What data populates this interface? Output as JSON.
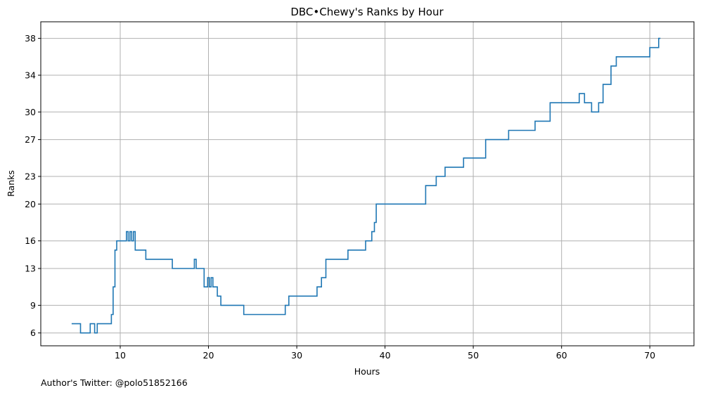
{
  "chart_data": {
    "type": "line",
    "step": "post",
    "title": "DBC•Chewy's Ranks by Hour",
    "xlabel": "Hours",
    "ylabel": "Ranks",
    "xlim": [
      1,
      75
    ],
    "ylim": [
      39.8,
      4.6
    ],
    "y_inverted": true,
    "x_ticks": [
      10,
      20,
      30,
      40,
      50,
      60,
      70
    ],
    "y_ticks": [
      6,
      9,
      13,
      16,
      20,
      23,
      27,
      30,
      34,
      38
    ],
    "grid": true,
    "line_color": "#1f77b4",
    "series": [
      {
        "x": [
          4.5,
          5.5,
          6.6,
          7.1,
          7.4,
          9.0,
          9.2,
          9.4,
          9.6,
          10.7,
          10.9,
          11.1,
          11.3,
          11.5,
          11.7,
          12.9,
          15.9,
          18.4,
          18.6,
          19.5,
          19.9,
          20.1,
          20.3,
          20.5,
          21.0,
          21.4,
          21.6,
          24.0,
          28.7,
          29.1,
          32.3,
          32.8,
          33.3,
          35.8,
          37.8,
          38.5,
          38.8,
          39.0,
          39.8,
          44.6,
          45.8,
          46.8,
          48.9,
          51.4,
          54.0,
          57.0,
          58.7,
          62.0,
          62.6,
          63.4,
          64.2,
          64.7,
          65.6,
          65.9,
          66.2,
          70.0,
          71.0,
          71.2
        ],
        "y": [
          7,
          6,
          7,
          6,
          7,
          8,
          11,
          15,
          16,
          17,
          16,
          17,
          16,
          17,
          15,
          14,
          13,
          14,
          13,
          11,
          12,
          11,
          12,
          11,
          10,
          9,
          9,
          8,
          9,
          10,
          11,
          12,
          14,
          15,
          16,
          17,
          18,
          20,
          20,
          22,
          23,
          24,
          25,
          27,
          28,
          29,
          31,
          32,
          31,
          30,
          31,
          33,
          35,
          35,
          36,
          37,
          38,
          38
        ]
      }
    ]
  },
  "footer": {
    "credit": "Author's Twitter: @polo51852166"
  }
}
